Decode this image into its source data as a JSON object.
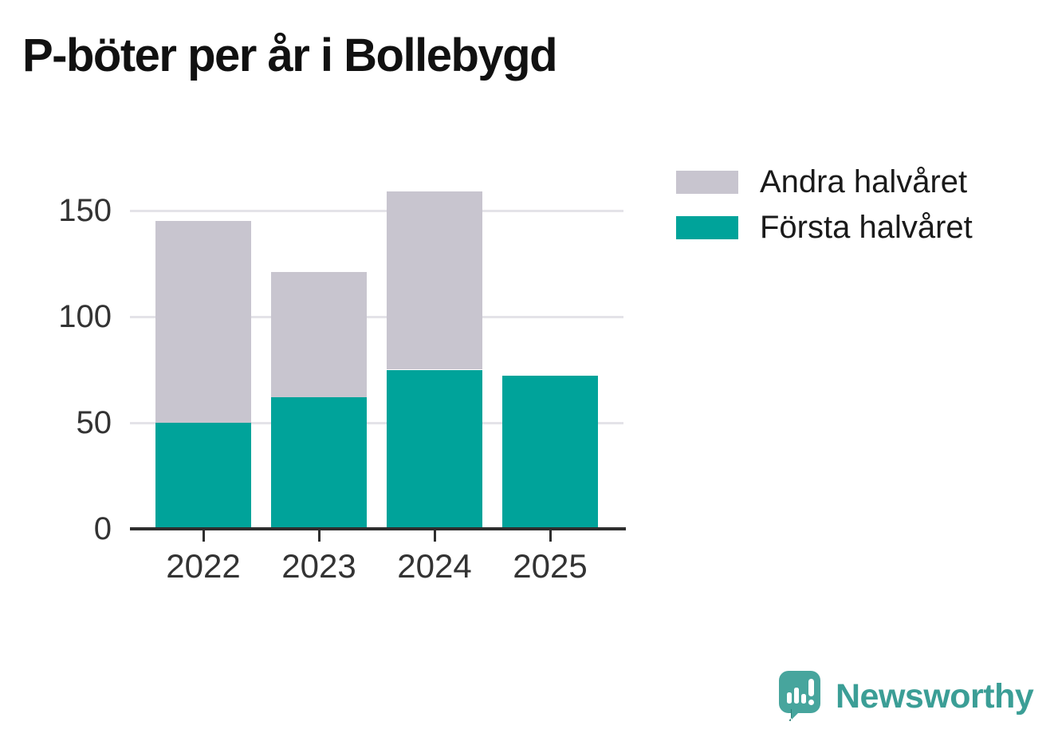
{
  "title": "P-böter per år i Bollebygd",
  "chart_data": {
    "type": "bar",
    "stacked": true,
    "title": "P-böter per år i Bollebygd",
    "xlabel": "",
    "ylabel": "",
    "categories": [
      "2022",
      "2023",
      "2024",
      "2025"
    ],
    "series": [
      {
        "name": "Första halvåret",
        "color": "#00a39a",
        "values": [
          50,
          62,
          75,
          72
        ]
      },
      {
        "name": "Andra halvåret",
        "color": "#c8c5cf",
        "values": [
          95,
          59,
          84,
          0
        ]
      }
    ],
    "totals": [
      145,
      121,
      159,
      72
    ],
    "yticks": [
      0,
      50,
      100,
      150
    ],
    "ylim": [
      0,
      167
    ],
    "grid": true,
    "legend_position": "top-right"
  },
  "legend": {
    "items": [
      {
        "label": "Andra halvåret",
        "color": "#c8c5cf"
      },
      {
        "label": "Första halvåret",
        "color": "#00a39a"
      }
    ]
  },
  "branding": {
    "logo_text": "Newsworthy",
    "logo_color": "#3b9e96"
  },
  "colors": {
    "bar_first_half": "#00a39a",
    "bar_second_half": "#c8c5cf",
    "axis": "#2e2e2e",
    "gridline": "#e4e3e8",
    "tick_text": "#333333",
    "title_text": "#111111"
  }
}
